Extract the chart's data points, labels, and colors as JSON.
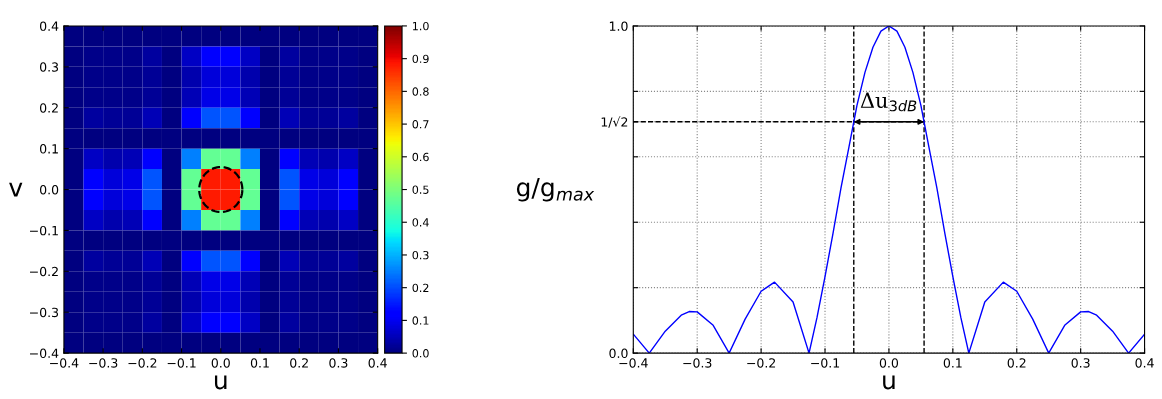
{
  "chart_data": [
    {
      "type": "heatmap",
      "xlabel": "u",
      "ylabel": "v",
      "xlim": [
        -0.4,
        0.4
      ],
      "ylim": [
        -0.4,
        0.4
      ],
      "xticks": [
        {
          "value": -0.4,
          "label": "−0.4"
        },
        {
          "value": -0.3,
          "label": "−0.3"
        },
        {
          "value": -0.2,
          "label": "−0.2"
        },
        {
          "value": -0.1,
          "label": "−0.1"
        },
        {
          "value": 0.0,
          "label": "0.0"
        },
        {
          "value": 0.1,
          "label": "0.1"
        },
        {
          "value": 0.2,
          "label": "0.2"
        },
        {
          "value": 0.3,
          "label": "0.3"
        },
        {
          "value": 0.4,
          "label": "0.4"
        }
      ],
      "yticks": [
        {
          "value": -0.4,
          "label": "−0.4"
        },
        {
          "value": -0.3,
          "label": "−0.3"
        },
        {
          "value": -0.2,
          "label": "−0.2"
        },
        {
          "value": -0.1,
          "label": "−0.1"
        },
        {
          "value": 0.0,
          "label": "0.0"
        },
        {
          "value": 0.1,
          "label": "0.1"
        },
        {
          "value": 0.2,
          "label": "0.2"
        },
        {
          "value": 0.3,
          "label": "0.3"
        },
        {
          "value": 0.4,
          "label": "0.4"
        }
      ],
      "clim": [
        0.0,
        1.0
      ],
      "cticks": [
        {
          "value": 0,
          "label": "0.0"
        },
        0.1,
        0.2,
        0.3,
        0.4,
        0.5,
        0.6,
        0.7,
        0.8,
        0.9,
        {
          "value": 1,
          "label": "1.0"
        }
      ],
      "cells": [
        [
          0,
          0,
          0,
          0,
          0,
          0,
          0,
          0,
          0,
          0,
          0,
          0,
          0,
          0,
          0,
          0
        ],
        [
          0,
          0.01,
          0.01,
          0.01,
          0.03,
          0,
          0.06,
          0.11,
          0.11,
          0.06,
          0,
          0.03,
          0.01,
          0.01,
          0.01,
          0
        ],
        [
          0,
          0.01,
          0.01,
          0.01,
          0.02,
          0,
          0.04,
          0.08,
          0.08,
          0.04,
          0,
          0.02,
          0.01,
          0.01,
          0.01,
          0
        ],
        [
          0,
          0.01,
          0.01,
          0.01,
          0.02,
          0,
          0.05,
          0.09,
          0.09,
          0.05,
          0,
          0.02,
          0.01,
          0.01,
          0.01,
          0
        ],
        [
          0,
          0.03,
          0.02,
          0.02,
          0.05,
          0,
          0.11,
          0.21,
          0.21,
          0.11,
          0,
          0.05,
          0.02,
          0.02,
          0.03,
          0
        ],
        [
          0,
          0,
          0,
          0,
          0,
          0,
          0,
          0,
          0,
          0,
          0,
          0,
          0,
          0,
          0,
          0
        ],
        [
          0,
          0.06,
          0.04,
          0.05,
          0.11,
          0,
          0.25,
          0.47,
          0.47,
          0.25,
          0,
          0.11,
          0.05,
          0.04,
          0.06,
          0
        ],
        [
          0,
          0.11,
          0.08,
          0.09,
          0.21,
          0,
          0.47,
          0.88,
          0.88,
          0.47,
          0,
          0.21,
          0.09,
          0.08,
          0.11,
          0
        ],
        [
          0,
          0.11,
          0.08,
          0.09,
          0.21,
          0,
          0.47,
          0.88,
          0.88,
          0.47,
          0,
          0.21,
          0.09,
          0.08,
          0.11,
          0
        ],
        [
          0,
          0.06,
          0.04,
          0.05,
          0.11,
          0,
          0.25,
          0.47,
          0.47,
          0.25,
          0,
          0.11,
          0.05,
          0.04,
          0.06,
          0
        ],
        [
          0,
          0,
          0,
          0,
          0,
          0,
          0,
          0,
          0,
          0,
          0,
          0,
          0,
          0,
          0,
          0
        ],
        [
          0,
          0.03,
          0.02,
          0.02,
          0.05,
          0,
          0.11,
          0.21,
          0.21,
          0.11,
          0,
          0.05,
          0.02,
          0.02,
          0.03,
          0
        ],
        [
          0,
          0.01,
          0.01,
          0.01,
          0.02,
          0,
          0.05,
          0.09,
          0.09,
          0.05,
          0,
          0.02,
          0.01,
          0.01,
          0.01,
          0
        ],
        [
          0,
          0.01,
          0.01,
          0.01,
          0.02,
          0,
          0.04,
          0.08,
          0.08,
          0.04,
          0,
          0.02,
          0.01,
          0.01,
          0.01,
          0
        ],
        [
          0,
          0.01,
          0.01,
          0.01,
          0.03,
          0,
          0.06,
          0.11,
          0.11,
          0.06,
          0,
          0.03,
          0.01,
          0.01,
          0.01,
          0
        ],
        [
          0,
          0,
          0,
          0,
          0,
          0,
          0,
          0,
          0,
          0,
          0,
          0,
          0,
          0,
          0,
          0
        ]
      ]
    },
    {
      "type": "line",
      "xlabel": "u",
      "ylabel": "g/g$_{max}$",
      "xlim": [
        -0.4,
        0.4
      ],
      "ylim": [
        0.0,
        1.0
      ],
      "xticks": [
        {
          "value": -0.4,
          "label": "−0.4"
        },
        {
          "value": -0.3,
          "label": "−0.3"
        },
        {
          "value": -0.2,
          "label": "−0.2"
        },
        {
          "value": -0.1,
          "label": "−0.1"
        },
        {
          "value": 0.0,
          "label": "0.0"
        },
        {
          "value": 0.1,
          "label": "0.1"
        },
        {
          "value": 0.2,
          "label": "0.2"
        },
        {
          "value": 0.3,
          "label": "0.3"
        },
        {
          "value": 0.4,
          "label": "0.4"
        }
      ],
      "yticks": [
        {
          "value": 0,
          "label": "0.0"
        },
        {
          "value": 0.2,
          "label": null
        },
        {
          "value": 0.4,
          "label": null
        },
        {
          "value": 0.6,
          "label": null
        },
        {
          "value": 0.707,
          "label": "1/√2"
        },
        {
          "value": 0.8,
          "label": null
        },
        {
          "value": 1,
          "label": "1.0"
        }
      ],
      "grid": true,
      "series": [
        {
          "color": "#0000ff",
          "line_style": "solid",
          "x": [
            -0.4,
            -0.375,
            -0.35,
            -0.325,
            -0.3125,
            -0.3,
            -0.275,
            -0.25,
            -0.225,
            -0.2,
            -0.179,
            -0.15,
            -0.125,
            -0.1125,
            -0.1,
            -0.0875,
            -0.075,
            -0.0625,
            -0.05,
            -0.0375,
            -0.025,
            -0.0125,
            0,
            0.0125,
            0.025,
            0.0375,
            0.05,
            0.0625,
            0.075,
            0.0875,
            0.1,
            0.1125,
            0.125,
            0.15,
            0.179,
            0.2,
            0.225,
            0.25,
            0.275,
            0.3,
            0.3125,
            0.325,
            0.35,
            0.375,
            0.4
          ],
          "values": [
            0.058,
            0,
            0.067,
            0.116,
            0.127,
            0.126,
            0.085,
            0,
            0.104,
            0.189,
            0.217,
            0.156,
            0,
            0.109,
            0.234,
            0.366,
            0.505,
            0.63,
            0.757,
            0.858,
            0.935,
            0.984,
            1,
            0.984,
            0.935,
            0.858,
            0.757,
            0.63,
            0.505,
            0.366,
            0.234,
            0.109,
            0,
            0.156,
            0.217,
            0.189,
            0.104,
            0,
            0.085,
            0.126,
            0.127,
            0.116,
            0.067,
            0,
            0.058
          ]
        }
      ],
      "ref_lines": [
        {
          "axis": "x",
          "value": -0.055,
          "color": "#000000",
          "line_style": "dashed"
        },
        {
          "axis": "x",
          "value": 0.055,
          "color": "#000000",
          "line_style": "dashed"
        },
        {
          "axis": "y",
          "value": 0.707,
          "color": "#000000",
          "line_style": "dashed"
        }
      ],
      "annotations": [
        {
          "text": "Δu$_{3dB}$",
          "x": 0.0,
          "y": 0.707
        }
      ]
    }
  ]
}
